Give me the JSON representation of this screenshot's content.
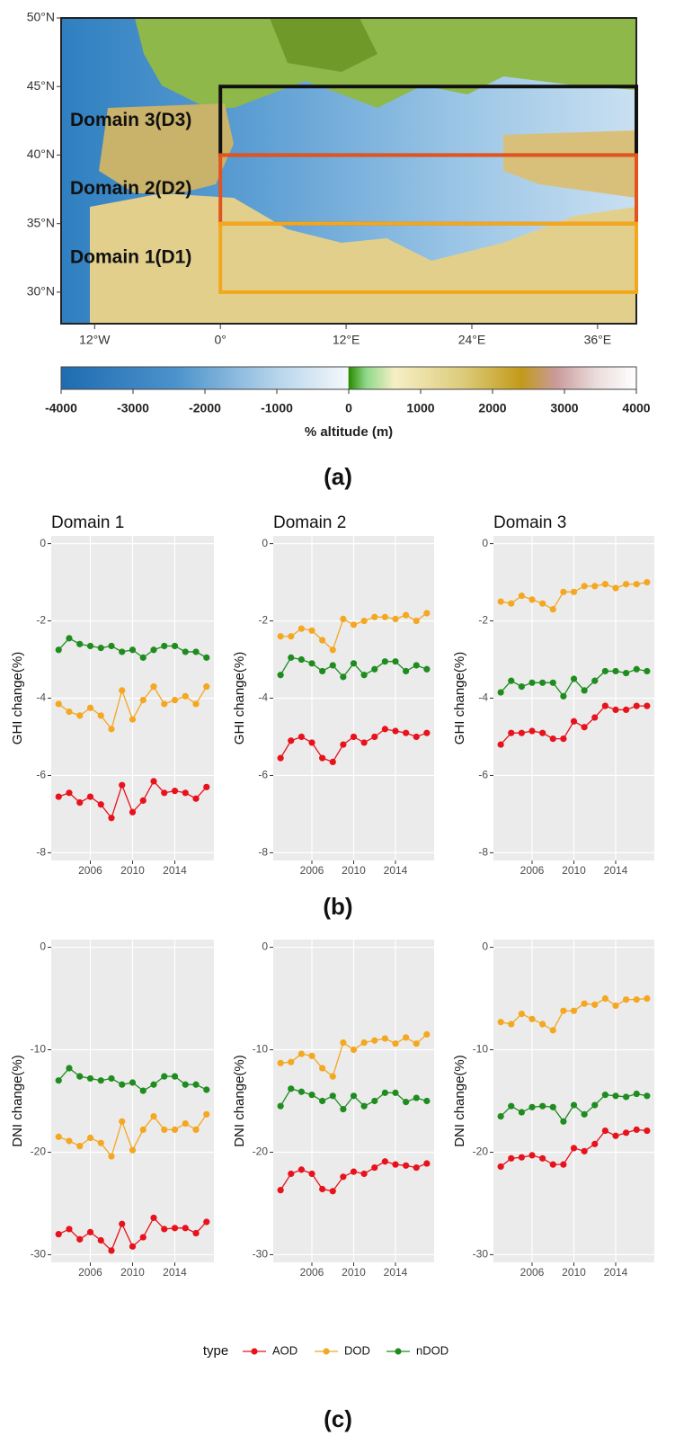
{
  "panel_labels": [
    "(a)",
    "(b)",
    "(c)"
  ],
  "legend": {
    "title": "type"
  },
  "chart_data": [
    {
      "type": "map",
      "xlim": [
        -15.2,
        39.7
      ],
      "ylim": [
        27.7,
        50
      ],
      "xticks": [
        {
          "value": -12,
          "label": "12°W"
        },
        {
          "value": 0,
          "label": "0°"
        },
        {
          "value": 12,
          "label": "12°E"
        },
        {
          "value": 24,
          "label": "24°E"
        },
        {
          "value": 36,
          "label": "36°E"
        }
      ],
      "yticks": [
        {
          "value": 30,
          "label": "30°N"
        },
        {
          "value": 35,
          "label": "35°N"
        },
        {
          "value": 40,
          "label": "40°N"
        },
        {
          "value": 45,
          "label": "45°N"
        },
        {
          "value": 50,
          "label": "50°N"
        }
      ],
      "regions": [
        {
          "name": "Domain 3(D3)",
          "lon": [
            0,
            39.7
          ],
          "lat": [
            40,
            45
          ],
          "color": "#111111"
        },
        {
          "name": "Domain 2(D2)",
          "lon": [
            0,
            39.7
          ],
          "lat": [
            35,
            40
          ],
          "color": "#e2531e"
        },
        {
          "name": "Domain 1(D1)",
          "lon": [
            0,
            39.7
          ],
          "lat": [
            30,
            35
          ],
          "color": "#f2a81d"
        }
      ],
      "colorbar": {
        "label": "% altitude (m)",
        "lim": [
          -4000,
          4000
        ],
        "ticks": [
          -4000,
          -3000,
          -2000,
          -1000,
          0,
          1000,
          2000,
          3000,
          4000
        ]
      }
    },
    {
      "type": "line",
      "title": "Domain 1",
      "ylabel": "GHI change(%)",
      "x": [
        2003,
        2004,
        2005,
        2006,
        2007,
        2008,
        2009,
        2010,
        2011,
        2012,
        2013,
        2014,
        2015,
        2016,
        2017
      ],
      "xlim": [
        2002.3,
        2017.7
      ],
      "xticks": [
        2006,
        2010,
        2014
      ],
      "ylim": [
        -8.2,
        0.2
      ],
      "yticks": [
        0,
        -2,
        -4,
        -6,
        -8
      ],
      "grid": true,
      "series": [
        {
          "name": "AOD",
          "color": "#e8121c",
          "values": [
            -6.55,
            -6.45,
            -6.7,
            -6.55,
            -6.75,
            -7.1,
            -6.25,
            -6.95,
            -6.65,
            -6.15,
            -6.45,
            -6.4,
            -6.45,
            -6.6,
            -6.3
          ]
        },
        {
          "name": "DOD",
          "color": "#f4a720",
          "values": [
            -4.15,
            -4.35,
            -4.45,
            -4.25,
            -4.45,
            -4.8,
            -3.8,
            -4.55,
            -4.05,
            -3.7,
            -4.15,
            -4.05,
            -3.95,
            -4.15,
            -3.7
          ]
        },
        {
          "name": "nDOD",
          "color": "#1f8c1f",
          "values": [
            -2.75,
            -2.45,
            -2.6,
            -2.65,
            -2.7,
            -2.65,
            -2.8,
            -2.75,
            -2.95,
            -2.75,
            -2.65,
            -2.65,
            -2.8,
            -2.8,
            -2.95
          ]
        }
      ]
    },
    {
      "type": "line",
      "title": "Domain 2",
      "ylabel": "GHI change(%)",
      "x": [
        2003,
        2004,
        2005,
        2006,
        2007,
        2008,
        2009,
        2010,
        2011,
        2012,
        2013,
        2014,
        2015,
        2016,
        2017
      ],
      "xlim": [
        2002.3,
        2017.7
      ],
      "xticks": [
        2006,
        2010,
        2014
      ],
      "ylim": [
        -8.2,
        0.2
      ],
      "yticks": [
        0,
        -2,
        -4,
        -6,
        -8
      ],
      "grid": true,
      "series": [
        {
          "name": "AOD",
          "color": "#e8121c",
          "values": [
            -5.55,
            -5.1,
            -5.0,
            -5.15,
            -5.55,
            -5.65,
            -5.2,
            -5.0,
            -5.15,
            -5.0,
            -4.8,
            -4.85,
            -4.9,
            -5.0,
            -4.9
          ]
        },
        {
          "name": "DOD",
          "color": "#f4a720",
          "values": [
            -2.4,
            -2.4,
            -2.2,
            -2.25,
            -2.5,
            -2.75,
            -1.95,
            -2.1,
            -2.0,
            -1.9,
            -1.9,
            -1.95,
            -1.85,
            -2.0,
            -1.8
          ]
        },
        {
          "name": "nDOD",
          "color": "#1f8c1f",
          "values": [
            -3.4,
            -2.95,
            -3.0,
            -3.1,
            -3.3,
            -3.15,
            -3.45,
            -3.1,
            -3.4,
            -3.25,
            -3.05,
            -3.05,
            -3.3,
            -3.15,
            -3.25
          ]
        }
      ]
    },
    {
      "type": "line",
      "title": "Domain 3",
      "ylabel": "GHI change(%)",
      "x": [
        2003,
        2004,
        2005,
        2006,
        2007,
        2008,
        2009,
        2010,
        2011,
        2012,
        2013,
        2014,
        2015,
        2016,
        2017
      ],
      "xlim": [
        2002.3,
        2017.7
      ],
      "xticks": [
        2006,
        2010,
        2014
      ],
      "ylim": [
        -8.2,
        0.2
      ],
      "yticks": [
        0,
        -2,
        -4,
        -6,
        -8
      ],
      "grid": true,
      "series": [
        {
          "name": "AOD",
          "color": "#e8121c",
          "values": [
            -5.2,
            -4.9,
            -4.9,
            -4.85,
            -4.9,
            -5.05,
            -5.05,
            -4.6,
            -4.75,
            -4.5,
            -4.2,
            -4.3,
            -4.3,
            -4.2,
            -4.2
          ]
        },
        {
          "name": "DOD",
          "color": "#f4a720",
          "values": [
            -1.5,
            -1.55,
            -1.35,
            -1.45,
            -1.55,
            -1.7,
            -1.25,
            -1.25,
            -1.1,
            -1.1,
            -1.05,
            -1.15,
            -1.05,
            -1.05,
            -1.0
          ]
        },
        {
          "name": "nDOD",
          "color": "#1f8c1f",
          "values": [
            -3.85,
            -3.55,
            -3.7,
            -3.6,
            -3.6,
            -3.6,
            -3.95,
            -3.5,
            -3.8,
            -3.55,
            -3.3,
            -3.3,
            -3.35,
            -3.25,
            -3.3
          ]
        }
      ]
    },
    {
      "type": "line",
      "ylabel": "DNI change(%)",
      "x": [
        2003,
        2004,
        2005,
        2006,
        2007,
        2008,
        2009,
        2010,
        2011,
        2012,
        2013,
        2014,
        2015,
        2016,
        2017
      ],
      "xlim": [
        2002.3,
        2017.7
      ],
      "xticks": [
        2006,
        2010,
        2014
      ],
      "ylim": [
        -30.75,
        0.75
      ],
      "yticks": [
        0,
        -10,
        -20,
        -30
      ],
      "grid": true,
      "series": [
        {
          "name": "AOD",
          "color": "#e8121c",
          "values": [
            -28.0,
            -27.5,
            -28.5,
            -27.8,
            -28.6,
            -29.6,
            -27.0,
            -29.2,
            -28.3,
            -26.4,
            -27.5,
            -27.4,
            -27.4,
            -27.9,
            -26.8
          ]
        },
        {
          "name": "DOD",
          "color": "#f4a720",
          "values": [
            -18.5,
            -18.9,
            -19.4,
            -18.6,
            -19.1,
            -20.4,
            -17.0,
            -19.8,
            -17.8,
            -16.5,
            -17.8,
            -17.8,
            -17.2,
            -17.8,
            -16.3
          ]
        },
        {
          "name": "nDOD",
          "color": "#1f8c1f",
          "values": [
            -13.0,
            -11.8,
            -12.6,
            -12.8,
            -13.0,
            -12.8,
            -13.4,
            -13.2,
            -14.0,
            -13.4,
            -12.6,
            -12.6,
            -13.4,
            -13.4,
            -13.9
          ]
        }
      ]
    },
    {
      "type": "line",
      "ylabel": "DNI change(%)",
      "x": [
        2003,
        2004,
        2005,
        2006,
        2007,
        2008,
        2009,
        2010,
        2011,
        2012,
        2013,
        2014,
        2015,
        2016,
        2017
      ],
      "xlim": [
        2002.3,
        2017.7
      ],
      "xticks": [
        2006,
        2010,
        2014
      ],
      "ylim": [
        -30.75,
        0.75
      ],
      "yticks": [
        0,
        -10,
        -20,
        -30
      ],
      "grid": true,
      "series": [
        {
          "name": "AOD",
          "color": "#e8121c",
          "values": [
            -23.7,
            -22.1,
            -21.7,
            -22.1,
            -23.6,
            -23.8,
            -22.4,
            -21.9,
            -22.1,
            -21.5,
            -20.9,
            -21.2,
            -21.3,
            -21.5,
            -21.1
          ]
        },
        {
          "name": "DOD",
          "color": "#f4a720",
          "values": [
            -11.3,
            -11.2,
            -10.4,
            -10.6,
            -11.8,
            -12.6,
            -9.3,
            -10.0,
            -9.3,
            -9.1,
            -8.9,
            -9.4,
            -8.8,
            -9.4,
            -8.5
          ]
        },
        {
          "name": "nDOD",
          "color": "#1f8c1f",
          "values": [
            -15.5,
            -13.8,
            -14.1,
            -14.4,
            -15.0,
            -14.5,
            -15.8,
            -14.5,
            -15.5,
            -15.0,
            -14.2,
            -14.2,
            -15.1,
            -14.7,
            -15.0
          ]
        }
      ]
    },
    {
      "type": "line",
      "ylabel": "DNI change(%)",
      "x": [
        2003,
        2004,
        2005,
        2006,
        2007,
        2008,
        2009,
        2010,
        2011,
        2012,
        2013,
        2014,
        2015,
        2016,
        2017
      ],
      "xlim": [
        2002.3,
        2017.7
      ],
      "xticks": [
        2006,
        2010,
        2014
      ],
      "ylim": [
        -30.75,
        0.75
      ],
      "yticks": [
        0,
        -10,
        -20,
        -30
      ],
      "grid": true,
      "series": [
        {
          "name": "AOD",
          "color": "#e8121c",
          "values": [
            -21.4,
            -20.6,
            -20.5,
            -20.3,
            -20.6,
            -21.2,
            -21.2,
            -19.6,
            -19.9,
            -19.2,
            -17.9,
            -18.4,
            -18.1,
            -17.8,
            -17.9
          ]
        },
        {
          "name": "DOD",
          "color": "#f4a720",
          "values": [
            -7.3,
            -7.5,
            -6.5,
            -7.0,
            -7.5,
            -8.1,
            -6.2,
            -6.2,
            -5.5,
            -5.6,
            -5.0,
            -5.7,
            -5.1,
            -5.1,
            -5.0
          ]
        },
        {
          "name": "nDOD",
          "color": "#1f8c1f",
          "values": [
            -16.5,
            -15.5,
            -16.1,
            -15.6,
            -15.5,
            -15.6,
            -17.0,
            -15.4,
            -16.3,
            -15.4,
            -14.4,
            -14.5,
            -14.6,
            -14.3,
            -14.5
          ]
        }
      ]
    }
  ]
}
